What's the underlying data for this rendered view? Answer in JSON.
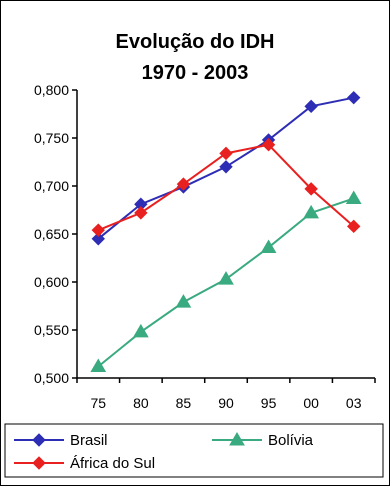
{
  "chart_data": {
    "type": "line",
    "title": "Evolução do IDH",
    "subtitle": "1970 - 2003",
    "xlabel": "",
    "ylabel": "",
    "categories": [
      "75",
      "80",
      "85",
      "90",
      "95",
      "00",
      "03"
    ],
    "ylim": [
      0.5,
      0.8
    ],
    "yticks": [
      "0,800",
      "0,750",
      "0,700",
      "0,650",
      "0,600",
      "0,550",
      "0,500"
    ],
    "ytick_values": [
      0.8,
      0.75,
      0.7,
      0.65,
      0.6,
      0.55,
      0.5
    ],
    "grid": false,
    "legend_position": "bottom",
    "series": [
      {
        "name": "Brasil",
        "color": "#2d2db5",
        "marker": "diamond",
        "values": [
          0.645,
          0.681,
          0.699,
          0.72,
          0.748,
          0.783,
          0.792
        ]
      },
      {
        "name": "Bolívia",
        "color": "#3aaa80",
        "marker": "triangle",
        "values": [
          0.512,
          0.548,
          0.579,
          0.603,
          0.636,
          0.672,
          0.687
        ]
      },
      {
        "name": "África do Sul",
        "color": "#e82020",
        "marker": "diamond",
        "values": [
          0.654,
          0.672,
          0.702,
          0.734,
          0.743,
          0.697,
          0.658
        ]
      }
    ]
  }
}
